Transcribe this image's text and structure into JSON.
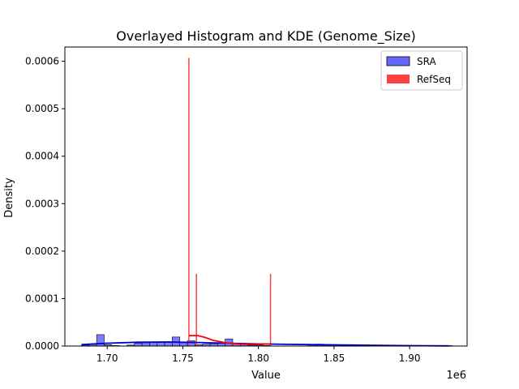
{
  "chart_data": {
    "type": "histogram",
    "title": "Overlayed Histogram and KDE (Genome_Size)",
    "xlabel": "Value",
    "ylabel": "Density",
    "x_offset_label": "1e6",
    "xlim": [
      1672000,
      1938000
    ],
    "ylim": [
      0,
      0.00063
    ],
    "x_ticks": [
      1700000,
      1750000,
      1800000,
      1850000,
      1900000
    ],
    "x_tick_labels": [
      "1.70",
      "1.75",
      "1.80",
      "1.85",
      "1.90"
    ],
    "y_ticks": [
      0,
      0.0001,
      0.0002,
      0.0003,
      0.0004,
      0.0005,
      0.0006
    ],
    "y_tick_labels": [
      "0.0000",
      "0.0001",
      "0.0002",
      "0.0003",
      "0.0004",
      "0.0005",
      "0.0006"
    ],
    "legend_position": "top-right",
    "series": [
      {
        "name": "SRA",
        "color": "#6666ff",
        "edge_color": "#000000",
        "kde_color": "#0000cc",
        "bins": [
          {
            "x0": 1683000,
            "x1": 1688000,
            "density": 2e-06
          },
          {
            "x0": 1688000,
            "x1": 1693000,
            "density": 4e-06
          },
          {
            "x0": 1693000,
            "x1": 1698000,
            "density": 2.4e-05
          },
          {
            "x0": 1698000,
            "x1": 1703000,
            "density": 3e-06
          },
          {
            "x0": 1703000,
            "x1": 1708000,
            "density": 1e-06
          },
          {
            "x0": 1713000,
            "x1": 1718000,
            "density": 2e-06
          },
          {
            "x0": 1718000,
            "x1": 1723000,
            "density": 6e-06
          },
          {
            "x0": 1723000,
            "x1": 1728000,
            "density": 7e-06
          },
          {
            "x0": 1728000,
            "x1": 1733000,
            "density": 8e-06
          },
          {
            "x0": 1733000,
            "x1": 1738000,
            "density": 9e-06
          },
          {
            "x0": 1738000,
            "x1": 1743000,
            "density": 9e-06
          },
          {
            "x0": 1743000,
            "x1": 1748000,
            "density": 1.9e-05
          },
          {
            "x0": 1748000,
            "x1": 1753000,
            "density": 8e-06
          },
          {
            "x0": 1753000,
            "x1": 1758000,
            "density": 1.1e-05
          },
          {
            "x0": 1758000,
            "x1": 1763000,
            "density": 3e-06
          },
          {
            "x0": 1763000,
            "x1": 1768000,
            "density": 4e-06
          },
          {
            "x0": 1768000,
            "x1": 1773000,
            "density": 5e-06
          },
          {
            "x0": 1773000,
            "x1": 1778000,
            "density": 6e-06
          },
          {
            "x0": 1778000,
            "x1": 1783000,
            "density": 1.5e-05
          },
          {
            "x0": 1783000,
            "x1": 1788000,
            "density": 6e-06
          },
          {
            "x0": 1788000,
            "x1": 1793000,
            "density": 4e-06
          },
          {
            "x0": 1793000,
            "x1": 1798000,
            "density": 2e-06
          },
          {
            "x0": 1798000,
            "x1": 1803000,
            "density": 2e-06
          },
          {
            "x0": 1803000,
            "x1": 1808000,
            "density": 1e-06
          },
          {
            "x0": 1833000,
            "x1": 1838000,
            "density": 3e-06
          },
          {
            "x0": 1838000,
            "x1": 1843000,
            "density": 4e-06
          },
          {
            "x0": 1843000,
            "x1": 1848000,
            "density": 3e-06
          },
          {
            "x0": 1883000,
            "x1": 1888000,
            "density": 2e-06
          },
          {
            "x0": 1923000,
            "x1": 1928000,
            "density": 1e-06
          }
        ],
        "kde": {
          "x": [
            1683000,
            1700000,
            1720000,
            1740000,
            1750000,
            1760000,
            1780000,
            1800000,
            1820000,
            1850000,
            1880000,
            1900000,
            1926000
          ],
          "y": [
            3e-06,
            6e-06,
            8e-06,
            8.5e-06,
            8e-06,
            7.5e-06,
            6e-06,
            4.5e-06,
            3.5e-06,
            2.5e-06,
            1.5e-06,
            8e-07,
            4e-07
          ]
        }
      },
      {
        "name": "RefSeq",
        "color": "#ff4040",
        "kde_color": "#ff0000",
        "bins": [
          {
            "x0": 1753600,
            "x1": 1754400,
            "density": 0.000607
          },
          {
            "x0": 1758600,
            "x1": 1759400,
            "density": 0.000152
          },
          {
            "x0": 1807600,
            "x1": 1808400,
            "density": 0.000152
          }
        ],
        "kde": {
          "x": [
            1754000,
            1760000,
            1765000,
            1770000,
            1780000,
            1790000,
            1800000,
            1808000
          ],
          "y": [
            2.2e-05,
            2.2e-05,
            1.8e-05,
            1.2e-05,
            6e-06,
            4e-06,
            4e-06,
            4.5e-06
          ]
        }
      }
    ]
  }
}
